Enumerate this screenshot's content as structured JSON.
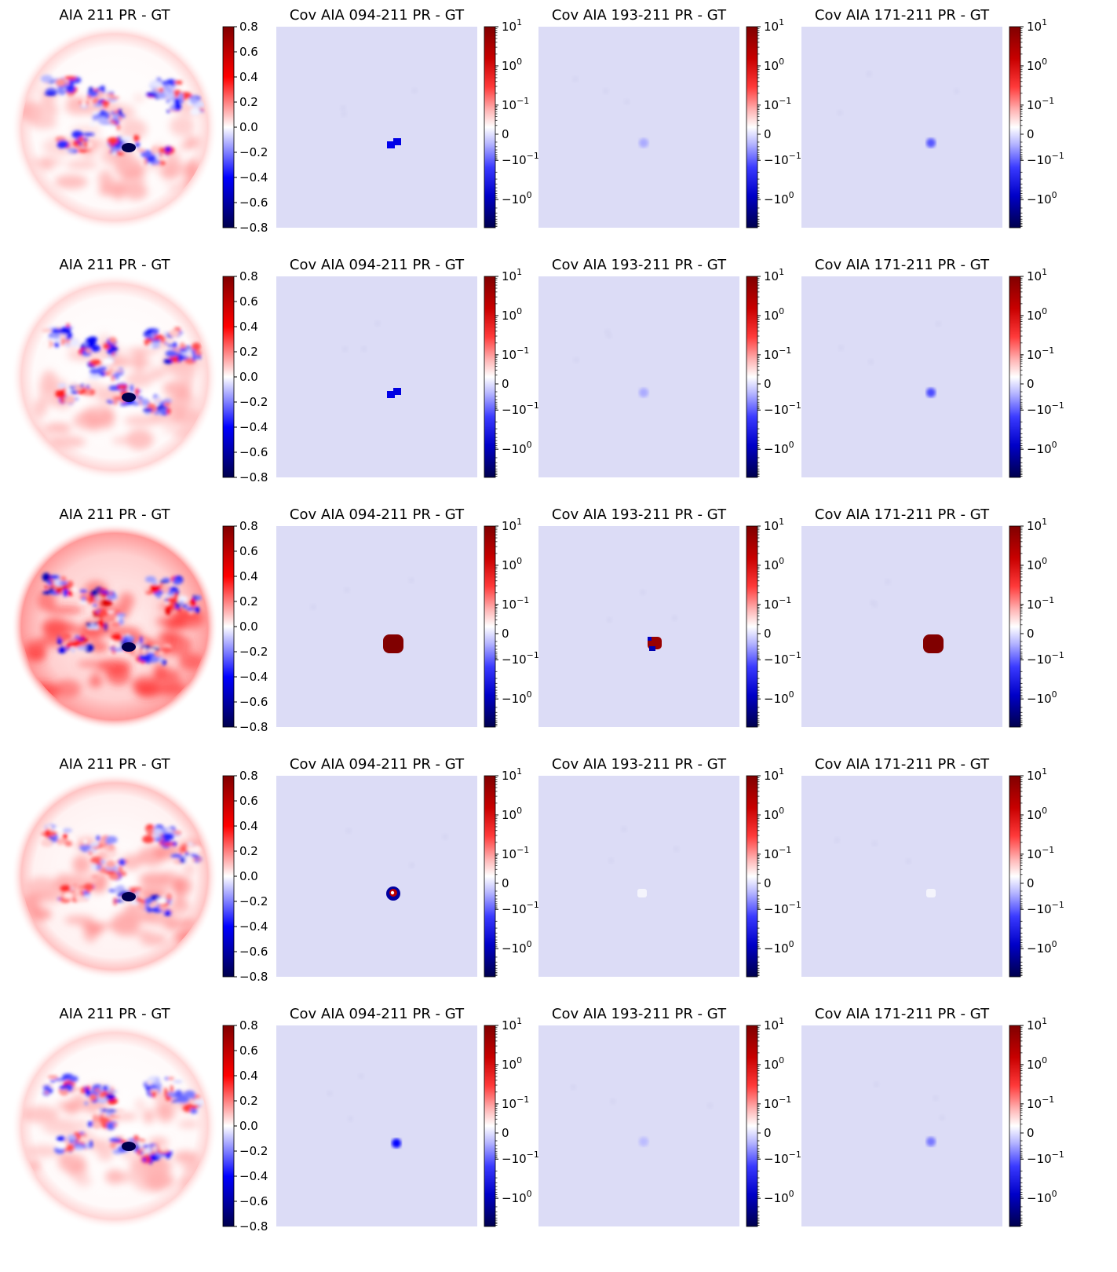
{
  "figure_rows": [
    {
      "sun_panel": {
        "title": "AIA 211 PR - GT",
        "variant": "low",
        "south_spot": "dark"
      },
      "cov_panels": [
        {
          "title": "Cov AIA 094-211 PR - GT",
          "blob": {
            "kind": "neg_square",
            "level": 0.45
          }
        },
        {
          "title": "Cov AIA 193-211 PR - GT",
          "blob": {
            "kind": "faint",
            "level": 0.05
          }
        },
        {
          "title": "Cov AIA 171-211 PR - GT",
          "blob": {
            "kind": "faint",
            "level": 0.1
          }
        }
      ]
    },
    {
      "sun_panel": {
        "title": "AIA 211 PR - GT",
        "variant": "low",
        "south_spot": "dark"
      },
      "cov_panels": [
        {
          "title": "Cov AIA 094-211 PR - GT",
          "blob": {
            "kind": "neg_square",
            "level": 0.5
          }
        },
        {
          "title": "Cov AIA 193-211 PR - GT",
          "blob": {
            "kind": "faint",
            "level": 0.05
          }
        },
        {
          "title": "Cov AIA 171-211 PR - GT",
          "blob": {
            "kind": "faint",
            "level": 0.12
          }
        }
      ]
    },
    {
      "sun_panel": {
        "title": "AIA 211 PR - GT",
        "variant": "high",
        "south_spot": "dark"
      },
      "cov_panels": [
        {
          "title": "Cov AIA 094-211 PR - GT",
          "blob": {
            "kind": "pos_big",
            "level": 9
          }
        },
        {
          "title": "Cov AIA 193-211 PR - GT",
          "blob": {
            "kind": "pos_mixed",
            "level": 5
          }
        },
        {
          "title": "Cov AIA 171-211 PR - GT",
          "blob": {
            "kind": "pos_big",
            "level": 9
          }
        }
      ]
    },
    {
      "sun_panel": {
        "title": "AIA 211 PR - GT",
        "variant": "mid",
        "south_spot": "dark"
      },
      "cov_panels": [
        {
          "title": "Cov AIA 094-211 PR - GT",
          "blob": {
            "kind": "ring",
            "level": 2
          }
        },
        {
          "title": "Cov AIA 193-211 PR - GT",
          "blob": {
            "kind": "white",
            "level": 0
          }
        },
        {
          "title": "Cov AIA 171-211 PR - GT",
          "blob": {
            "kind": "white",
            "level": 0
          }
        }
      ]
    },
    {
      "sun_panel": {
        "title": "AIA 211 PR - GT",
        "variant": "low",
        "south_spot": "dark"
      },
      "cov_panels": [
        {
          "title": "Cov AIA 094-211 PR - GT",
          "blob": {
            "kind": "neg_small",
            "level": 0.3
          }
        },
        {
          "title": "Cov AIA 193-211 PR - GT",
          "blob": {
            "kind": "faint",
            "level": 0.04
          }
        },
        {
          "title": "Cov AIA 171-211 PR - GT",
          "blob": {
            "kind": "faint",
            "level": 0.08
          }
        }
      ]
    }
  ],
  "sun_colorbar": {
    "range": [
      -0.8,
      0.8
    ],
    "ticks": [
      "0.8",
      "0.6",
      "0.4",
      "0.2",
      "0.0",
      "−0.2",
      "−0.4",
      "−0.6",
      "−0.8"
    ],
    "colormap": "seismic"
  },
  "cov_colorbar": {
    "scale": "symlog",
    "ticks": [
      {
        "base": "10",
        "exp": "1"
      },
      {
        "base": "10",
        "exp": "0"
      },
      {
        "base": "10",
        "exp": "−1"
      },
      {
        "base": "0",
        "exp": ""
      },
      {
        "base": "−10",
        "exp": "−1"
      },
      {
        "base": "−10",
        "exp": "0"
      }
    ],
    "colormap": "seismic"
  },
  "colors": {
    "dark_red": "#800000",
    "red": "#ff0000",
    "white": "#ffffff",
    "blue": "#0000ff",
    "dark_blue": "#00004c",
    "background_tint": "#dcdcf6"
  }
}
